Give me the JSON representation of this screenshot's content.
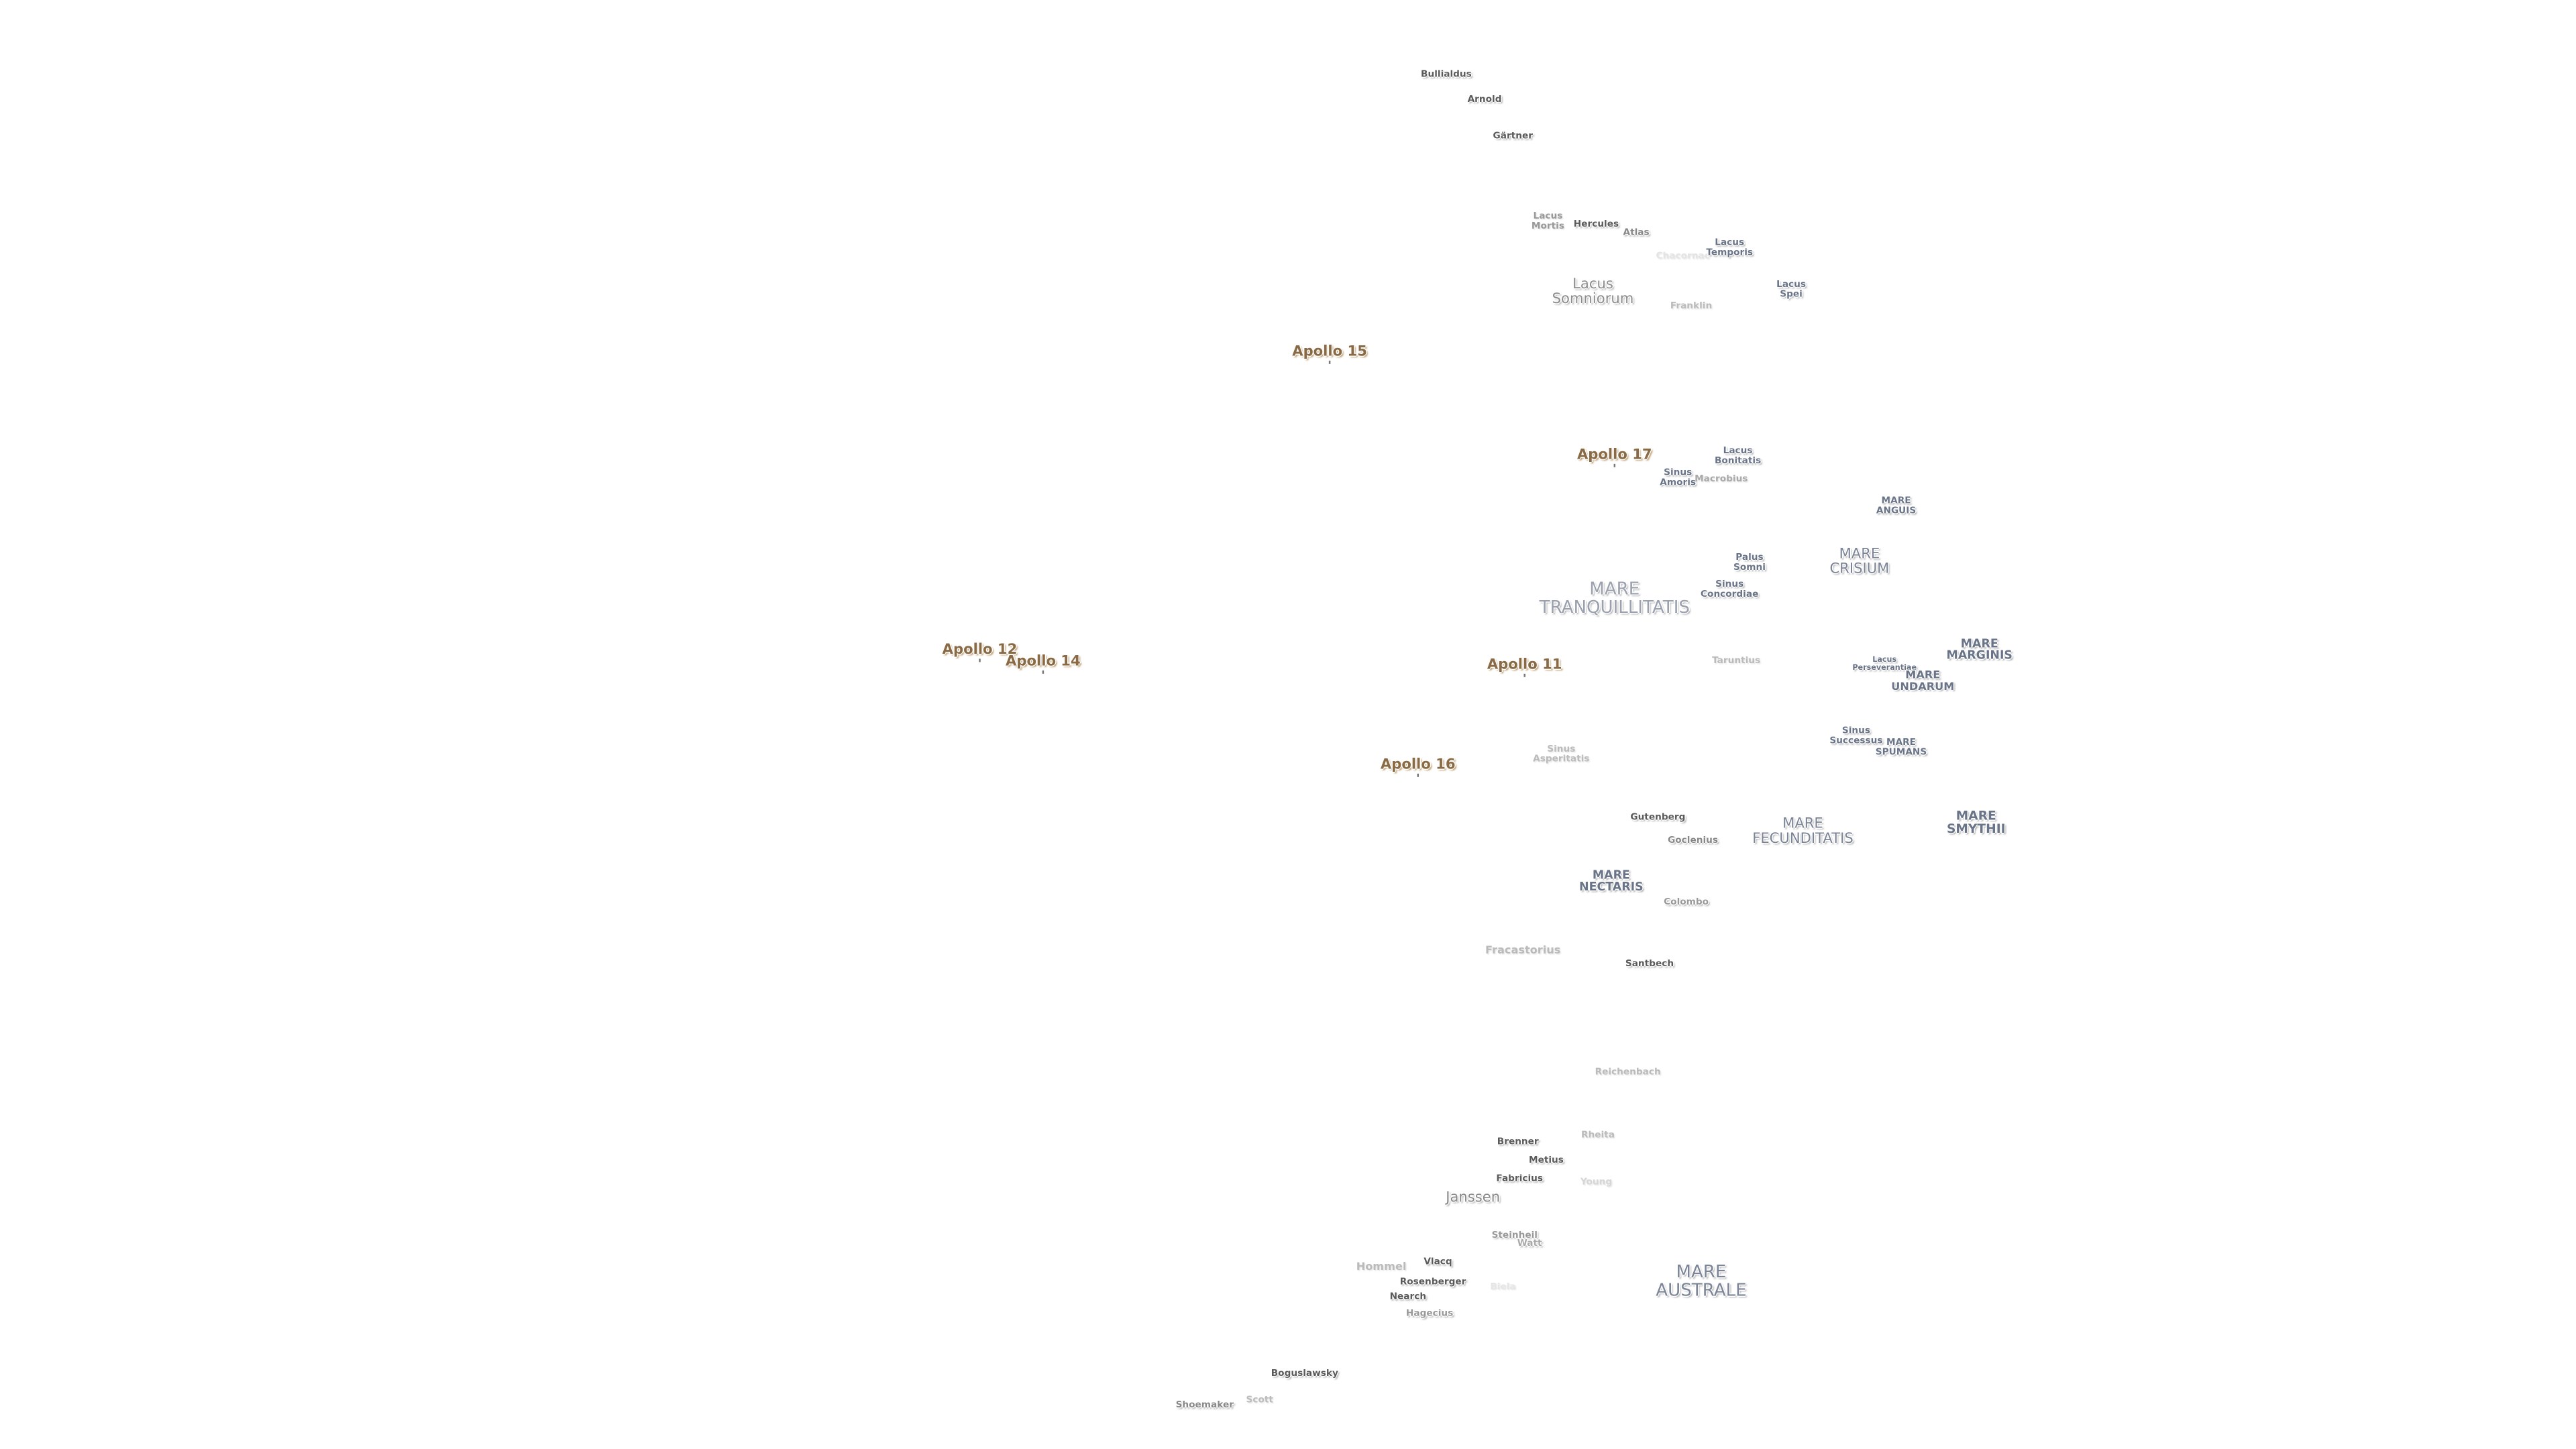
{
  "labels": [
    {
      "text": "Bullialdus"
    },
    {
      "text": "Arnold"
    },
    {
      "text": "Gärtner"
    },
    {
      "text": "Lacus\nMortis"
    },
    {
      "text": "Hercules"
    },
    {
      "text": "Atlas"
    },
    {
      "text": "Chacornac"
    },
    {
      "text": "Lacus\nTemporis"
    },
    {
      "text": "Lacus\nSomniorum"
    },
    {
      "text": "Franklin"
    },
    {
      "text": "Lacus\nSpei"
    },
    {
      "text": "Apollo 15"
    },
    {
      "text": "Apollo 17"
    },
    {
      "text": "Lacus\nBonitatis"
    },
    {
      "text": "Sinus\nAmoris"
    },
    {
      "text": "Macrobius"
    },
    {
      "text": "MARE\nANGUIS"
    },
    {
      "text": "Palus\nSomni"
    },
    {
      "text": "MARE\nCRISIUM"
    },
    {
      "text": "MARE\nTRANQUILLITATIS"
    },
    {
      "text": "Sinus\nConcordiae"
    },
    {
      "text": "Apollo 12"
    },
    {
      "text": "Apollo 14"
    },
    {
      "text": "Apollo 11"
    },
    {
      "text": "Taruntius"
    },
    {
      "text": "Lacus\nPerseverantiae"
    },
    {
      "text": "MARE\nMARGINIS"
    },
    {
      "text": "MARE\nUNDARUM"
    },
    {
      "text": "Sinus\nSuccessus"
    },
    {
      "text": "MARE\nSPUMANS"
    },
    {
      "text": "Sinus\nAsperitatis"
    },
    {
      "text": "Apollo 16"
    },
    {
      "text": "Gutenberg"
    },
    {
      "text": "MARE\nFECUNDITATIS"
    },
    {
      "text": "MARE\nSMYTHII"
    },
    {
      "text": "Goclenius"
    },
    {
      "text": "MARE\nNECTARIS"
    },
    {
      "text": "Colombo"
    },
    {
      "text": "Fracastorius"
    },
    {
      "text": "Santbech"
    },
    {
      "text": "Reichenbach"
    },
    {
      "text": "Brenner"
    },
    {
      "text": "Rheita"
    },
    {
      "text": "Metius"
    },
    {
      "text": "Fabricius"
    },
    {
      "text": "Young"
    },
    {
      "text": "Janssen"
    },
    {
      "text": "Steinheil"
    },
    {
      "text": "Watt"
    },
    {
      "text": "Hommel"
    },
    {
      "text": "Vlacq"
    },
    {
      "text": "Rosenberger"
    },
    {
      "text": "Nearch"
    },
    {
      "text": "Biela"
    },
    {
      "text": "MARE\nAUSTRALE"
    },
    {
      "text": "Hagecius"
    },
    {
      "text": "Boguslawsky"
    },
    {
      "text": "Scott"
    },
    {
      "text": "Shoemaker"
    }
  ]
}
